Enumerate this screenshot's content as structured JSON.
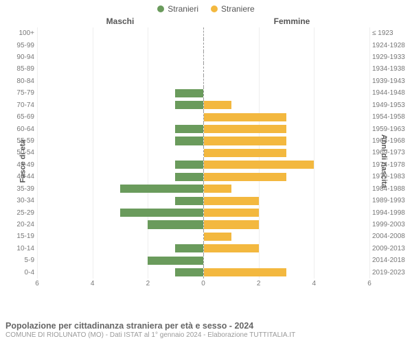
{
  "legend": [
    {
      "label": "Stranieri",
      "color": "#6a9b5c"
    },
    {
      "label": "Straniere",
      "color": "#f3b83f"
    }
  ],
  "headers": {
    "male": "Maschi",
    "female": "Femmine"
  },
  "axis_titles": {
    "left": "Fasce di età",
    "right": "Anni di nascita"
  },
  "x_max": 6,
  "x_ticks": [
    0,
    2,
    4,
    6
  ],
  "colors": {
    "male": "#6a9b5c",
    "female": "#f3b83f",
    "grid": "#eeeeee",
    "center_line": "#999999"
  },
  "rows": [
    {
      "age": "100+",
      "year": "≤ 1923",
      "m": 0,
      "f": 0
    },
    {
      "age": "95-99",
      "year": "1924-1928",
      "m": 0,
      "f": 0
    },
    {
      "age": "90-94",
      "year": "1929-1933",
      "m": 0,
      "f": 0
    },
    {
      "age": "85-89",
      "year": "1934-1938",
      "m": 0,
      "f": 0
    },
    {
      "age": "80-84",
      "year": "1939-1943",
      "m": 0,
      "f": 0
    },
    {
      "age": "75-79",
      "year": "1944-1948",
      "m": 1,
      "f": 0
    },
    {
      "age": "70-74",
      "year": "1949-1953",
      "m": 1,
      "f": 1
    },
    {
      "age": "65-69",
      "year": "1954-1958",
      "m": 0,
      "f": 3
    },
    {
      "age": "60-64",
      "year": "1959-1963",
      "m": 1,
      "f": 3
    },
    {
      "age": "55-59",
      "year": "1964-1968",
      "m": 1,
      "f": 3
    },
    {
      "age": "50-54",
      "year": "1969-1973",
      "m": 0,
      "f": 3
    },
    {
      "age": "45-49",
      "year": "1974-1978",
      "m": 1,
      "f": 4
    },
    {
      "age": "40-44",
      "year": "1979-1983",
      "m": 1,
      "f": 3
    },
    {
      "age": "35-39",
      "year": "1984-1988",
      "m": 3,
      "f": 1
    },
    {
      "age": "30-34",
      "year": "1989-1993",
      "m": 1,
      "f": 2
    },
    {
      "age": "25-29",
      "year": "1994-1998",
      "m": 3,
      "f": 2
    },
    {
      "age": "20-24",
      "year": "1999-2003",
      "m": 2,
      "f": 2
    },
    {
      "age": "15-19",
      "year": "2004-2008",
      "m": 0,
      "f": 1
    },
    {
      "age": "10-14",
      "year": "2009-2013",
      "m": 1,
      "f": 2
    },
    {
      "age": "5-9",
      "year": "2014-2018",
      "m": 2,
      "f": 0
    },
    {
      "age": "0-4",
      "year": "2019-2023",
      "m": 1,
      "f": 3
    }
  ],
  "footer": {
    "title": "Popolazione per cittadinanza straniera per età e sesso - 2024",
    "sub": "COMUNE DI RIOLUNATO (MO) - Dati ISTAT al 1° gennaio 2024 - Elaborazione TUTTITALIA.IT"
  }
}
